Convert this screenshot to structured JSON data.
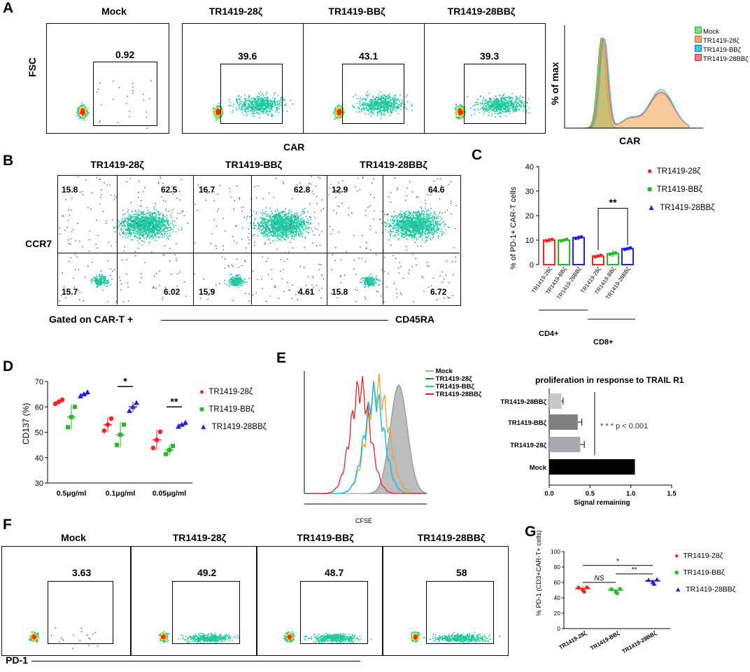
{
  "panelA": {
    "letter": "A",
    "plots": [
      {
        "title": "Mock",
        "gate": "0.92"
      },
      {
        "title": "TR1419-28ζ",
        "gate": "39.6"
      },
      {
        "title": "TR1419-BBζ",
        "gate": "43.1"
      },
      {
        "title": "TR1419-28BBζ",
        "gate": "39.3"
      }
    ],
    "ylabel": "FSC",
    "xlabel": "CAR",
    "hist": {
      "ylabel": "% of max",
      "xlabel": "CAR",
      "legend": [
        "Mock",
        "TR1419-28ζ",
        "TR1419-BBζ",
        "TR1419-28BBζ"
      ],
      "colors": [
        "#7fe07f",
        "#f2a65a",
        "#39c9e8",
        "#f07b86"
      ]
    }
  },
  "panelB": {
    "letter": "B",
    "plots": [
      {
        "title": "TR1419-28ζ",
        "ul": "15.8",
        "ur": "62.5",
        "ll": "15.7",
        "lr": "6.02"
      },
      {
        "title": "TR1419-BBζ",
        "ul": "16.7",
        "ur": "62.8",
        "ll": "15.9",
        "lr": "4.61"
      },
      {
        "title": "TR1419-28BBζ",
        "ul": "12.9",
        "ur": "64.6",
        "ll": "15.8",
        "lr": "6.72"
      }
    ],
    "ylabel": "CCR7",
    "gated_label": "Gated on CAR-T +",
    "xlabel": "CD45RA"
  },
  "panelC": {
    "letter": "C",
    "ylabel": "% of PD-1+ CAR-T cells",
    "legend": [
      "TR1419-28ζ",
      "TR1419-BBζ",
      "TR1419-28BBζ"
    ],
    "group_labels": [
      "CD4+",
      "CD8+"
    ],
    "significance": "**"
  },
  "panelD": {
    "letter": "D",
    "ylabel": "CD137 (%)",
    "legend": [
      "TR1419-28ζ",
      "TR1419-BBζ",
      "TR1419-28BBζ"
    ],
    "sig_labels": [
      "*",
      "**"
    ]
  },
  "panelE": {
    "letter": "E",
    "hist_legend": [
      "Mock",
      "TR1419-28ζ",
      "TR1419-BBζ",
      "TR1419-28BBζ"
    ],
    "hist_xlabel": "CFSE",
    "bar_title": "proliferation in response to TRAIL R1",
    "bar_xlabel": "Signal remaining",
    "pvalue": "* * * p < 0.001"
  },
  "panelF": {
    "letter": "F",
    "plots": [
      {
        "title": "Mock",
        "gate": "3.63"
      },
      {
        "title": "TR1419-28ζ",
        "gate": "49.2"
      },
      {
        "title": "TR1419-BBζ",
        "gate": "48.7"
      },
      {
        "title": "TR1419-28BBζ",
        "gate": "58"
      }
    ],
    "xlabel": "PD-1"
  },
  "panelG": {
    "letter": "G",
    "ylabel": "% PD-1 (CD3+CAR-T+ cells)",
    "legend": [
      "TR1419-28ζ",
      "TR1419-BBζ",
      "TR1419-28BBζ"
    ],
    "sig_labels": [
      "NS",
      "*",
      "**"
    ]
  },
  "chart_data": [
    {
      "id": "C",
      "type": "bar",
      "categories": [
        "TR1419-28ζ (CD4+)",
        "TR1419-BBζ (CD4+)",
        "TR1419-28BBζ (CD4+)",
        "TR1419-28ζ (CD8+)",
        "TR1419-BBζ (CD8+)",
        "TR1419-28BBζ (CD8+)"
      ],
      "values": [
        10,
        10,
        11,
        3.5,
        4.5,
        6.5
      ],
      "errors": [
        1,
        0.5,
        1,
        0.3,
        1.5,
        0.5
      ],
      "colors": [
        "#ff2020",
        "#22bb22",
        "#2020dd",
        "#ff2020",
        "#22bb22",
        "#2020dd"
      ],
      "ylim": [
        0,
        40
      ],
      "yticks": [
        0,
        10,
        20,
        30,
        40
      ],
      "ylabel": "% of PD-1+ CAR-T cells"
    },
    {
      "id": "D",
      "type": "scatter",
      "categories": [
        "0.5μg/ml",
        "0.1μg/ml",
        "0.05μg/ml"
      ],
      "series": [
        {
          "name": "TR1419-28ζ",
          "means": [
            62,
            53,
            47
          ],
          "errors": [
            1,
            3,
            4
          ]
        },
        {
          "name": "TR1419-BBζ",
          "means": [
            56,
            49,
            43
          ],
          "errors": [
            5,
            5,
            2
          ]
        },
        {
          "name": "TR1419-28BBζ",
          "means": [
            65,
            60,
            53
          ],
          "errors": [
            1,
            2,
            1
          ]
        }
      ],
      "ylim": [
        30,
        70
      ],
      "yticks": [
        30,
        40,
        50,
        60,
        70
      ],
      "ylabel": "CD137 (%)"
    },
    {
      "id": "E",
      "type": "bar",
      "orientation": "horizontal",
      "categories": [
        "TR1419-28BBζ",
        "TR1419-BBζ",
        "TR1419-28ζ",
        "Mock"
      ],
      "values": [
        0.15,
        0.35,
        0.38,
        1.05
      ],
      "errors": [
        0.02,
        0.05,
        0.05,
        0
      ],
      "colors": [
        "#c8c8c8",
        "#808080",
        "#a8a8b0",
        "#000000"
      ],
      "xlim": [
        0,
        1.5
      ],
      "xticks": [
        0.0,
        0.5,
        1.0,
        1.5
      ],
      "xlabel": "Signal remaining",
      "title": "proliferation in response to TRAIL R1"
    },
    {
      "id": "G",
      "type": "scatter",
      "categories": [
        "TR1419-28ζ",
        "TR1419-BBζ",
        "TR1419-28BBζ"
      ],
      "means": [
        52,
        50,
        62
      ],
      "errors": [
        3,
        2,
        2
      ],
      "ylim": [
        0,
        100
      ],
      "yticks": [
        0,
        20,
        40,
        60,
        80,
        100
      ],
      "ylabel": "% PD-1 (CD3+CAR-T+ cells)"
    }
  ]
}
